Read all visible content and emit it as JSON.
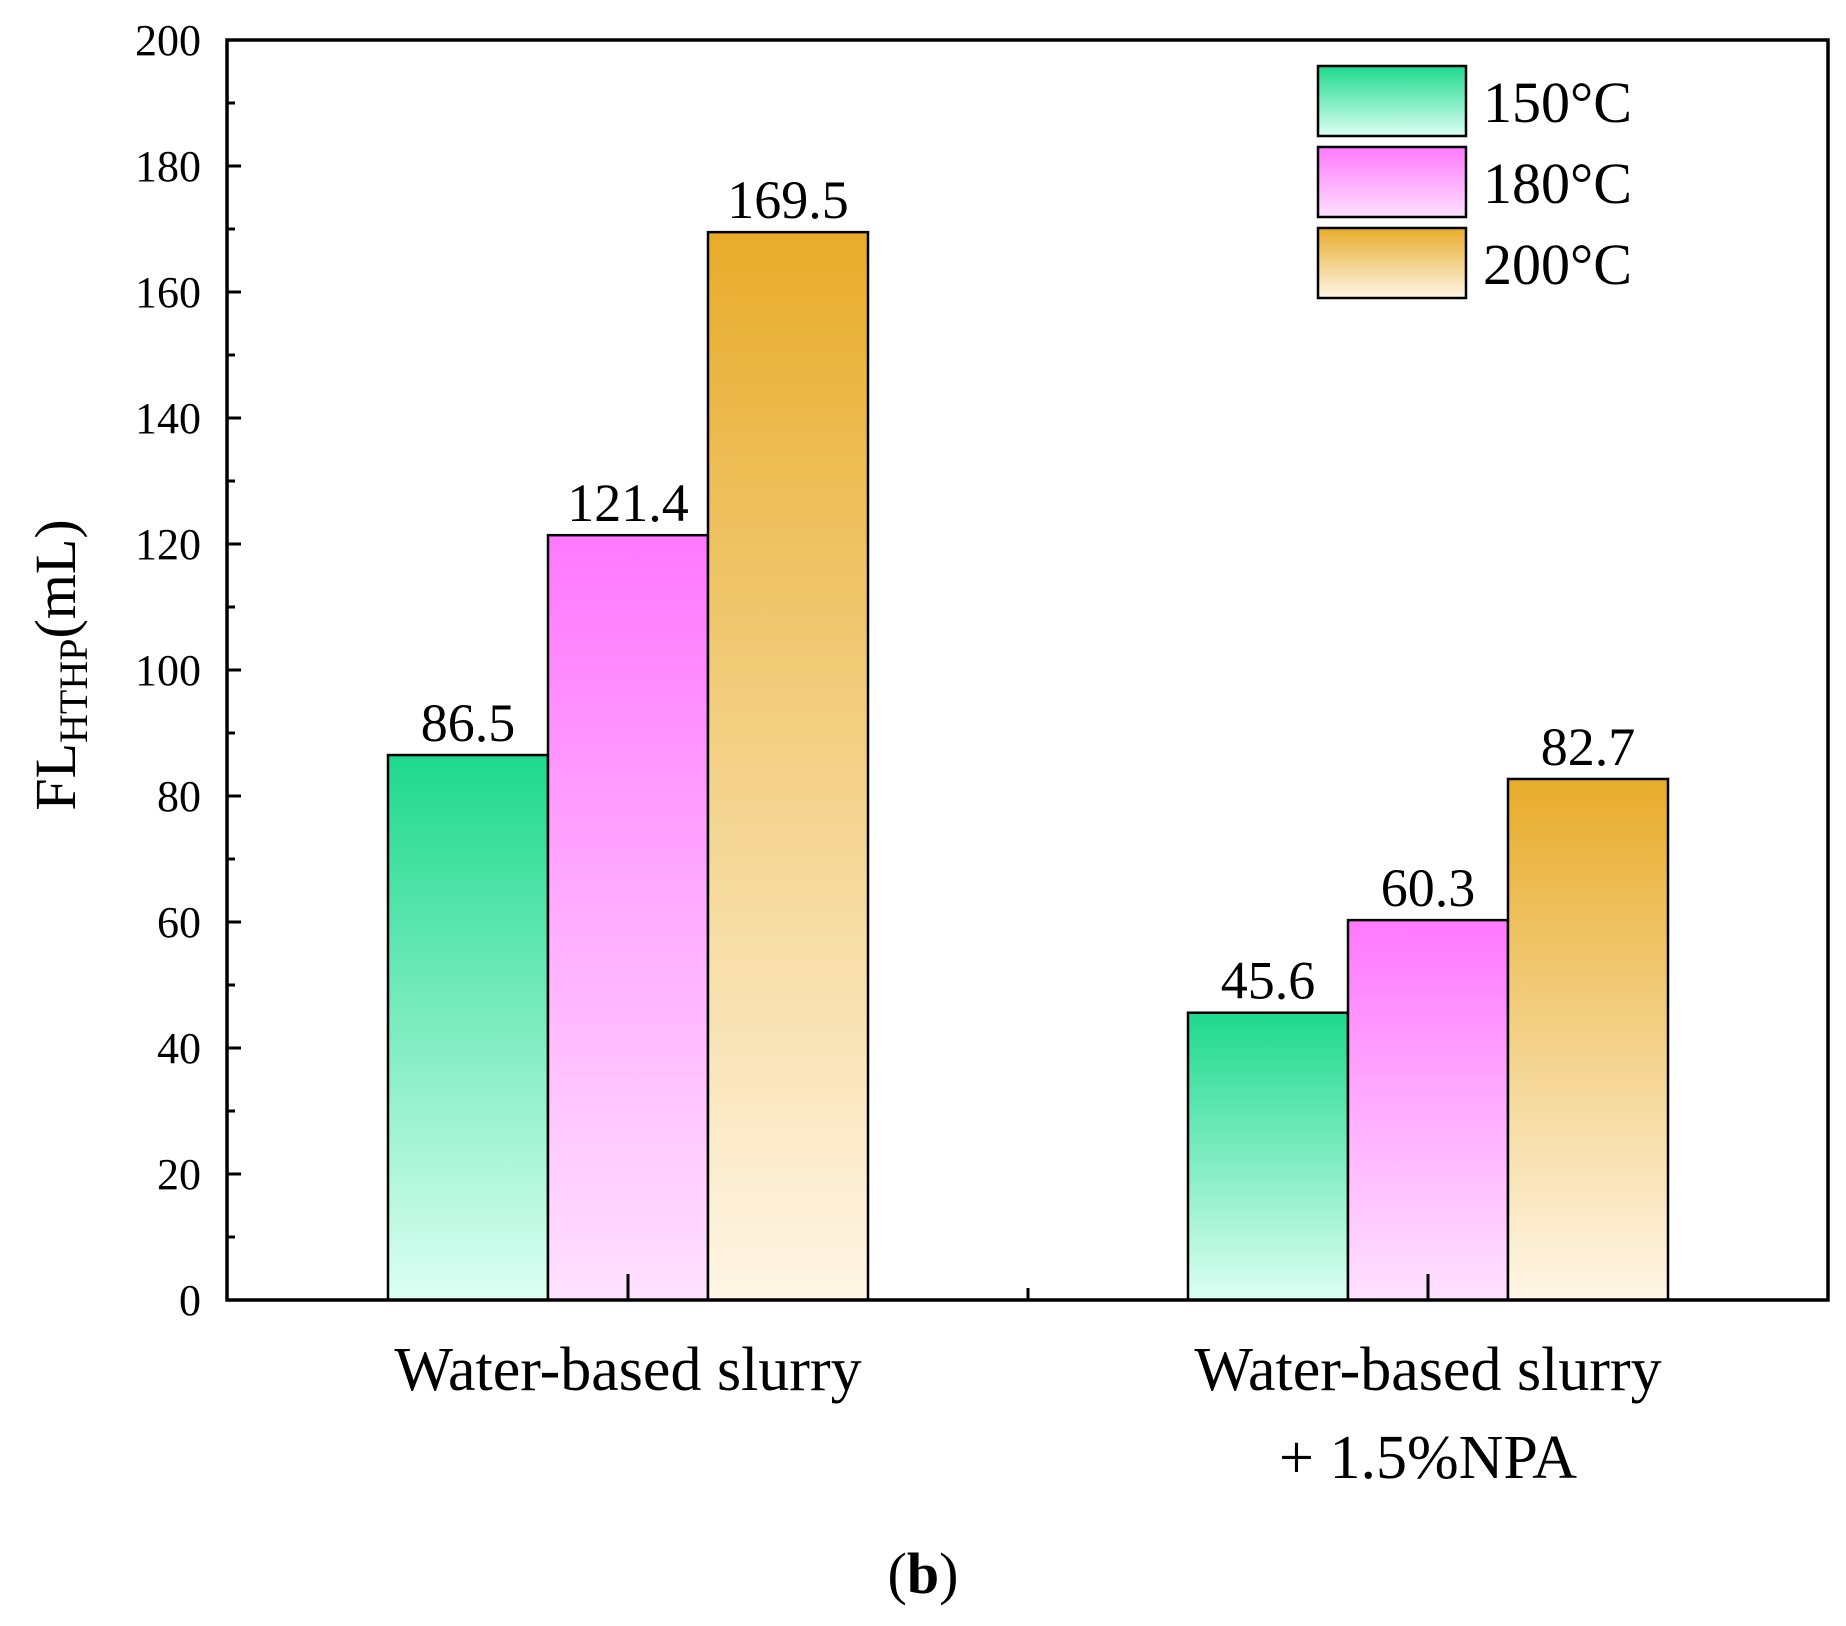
{
  "chart_data": {
    "type": "bar",
    "categories": [
      "Water-based slurry",
      "Water-based slurry\n+ 1.5%NPA"
    ],
    "series": [
      {
        "name": "150°C",
        "values": [
          86.5,
          45.6
        ],
        "color_top": "#1ed98e",
        "color_bottom": "#dcfff4"
      },
      {
        "name": "180°C",
        "values": [
          121.4,
          60.3
        ],
        "color_top": "#ff78ff",
        "color_bottom": "#ffe1ff"
      },
      {
        "name": "200°C",
        "values": [
          169.5,
          82.7
        ],
        "color_top": "#e8ac2a",
        "color_bottom": "#fff6e6"
      }
    ],
    "data_labels": [
      [
        "86.5",
        "45.6"
      ],
      [
        "121.4",
        "60.3"
      ],
      [
        "169.5",
        "82.7"
      ]
    ],
    "ylabel": {
      "main": "FL",
      "sub": "HTHP",
      "unit": "(mL)"
    },
    "xlabel": "",
    "ylim": [
      0,
      200
    ],
    "yticks": [
      0,
      20,
      40,
      60,
      80,
      100,
      120,
      140,
      160,
      180,
      200
    ],
    "legend_position": "top-right",
    "grid": false,
    "panel_label": {
      "open": "(",
      "letter": "b",
      "close": ")"
    }
  }
}
